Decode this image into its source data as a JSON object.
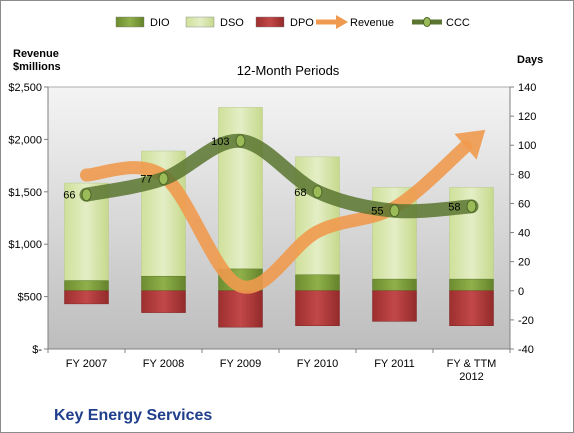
{
  "chart_data": {
    "type": "bar",
    "title": "12-Month Periods",
    "company": "Key Energy Services",
    "ylabel_left": [
      "Revenue",
      "$millions"
    ],
    "ylabel_right": "Days",
    "categories": [
      "FY 2007",
      "FY 2008",
      "FY 2009",
      "FY 2010",
      "FY 2011",
      "FY & TTM 2012"
    ],
    "left_axis": {
      "ylim": [
        0,
        2500
      ],
      "ticks": [
        0,
        500,
        1000,
        1500,
        2000,
        2500
      ],
      "tick_labels": [
        "$-",
        "$500",
        "$1,000",
        "$1,500",
        "$2,000",
        "$2,500"
      ]
    },
    "right_axis": {
      "ylim": [
        -40,
        140
      ],
      "ticks": [
        -40,
        -20,
        0,
        20,
        40,
        60,
        80,
        100,
        120,
        140
      ],
      "tick_labels": [
        "-40",
        "-20",
        "0",
        "20",
        "40",
        "60",
        "80",
        "100",
        "120",
        "140"
      ]
    },
    "legend": [
      {
        "name": "DIO",
        "color": "#7a9a3a",
        "kind": "bar"
      },
      {
        "name": "DSO",
        "color": "#d6e4a8",
        "kind": "bar"
      },
      {
        "name": "DPO",
        "color": "#b03a3a",
        "kind": "bar"
      },
      {
        "name": "Revenue",
        "color": "#ef9a4e",
        "kind": "arrow"
      },
      {
        "name": "CCC",
        "color": "#5b7530",
        "kind": "line-marker"
      }
    ],
    "series": [
      {
        "name": "DIO",
        "axis": "right",
        "values": [
          7,
          10,
          15,
          11,
          8,
          8
        ]
      },
      {
        "name": "DSO",
        "axis": "right",
        "values": [
          67,
          86,
          111,
          81,
          63,
          63
        ]
      },
      {
        "name": "DPO",
        "axis": "right",
        "values": [
          -9,
          -15,
          -25,
          -24,
          -21,
          -24
        ]
      },
      {
        "name": "Revenue",
        "axis": "left",
        "values": [
          1660,
          1650,
          600,
          1120,
          1350,
          1930
        ]
      },
      {
        "name": "CCC",
        "axis": "right",
        "values": [
          66,
          77,
          103,
          68,
          55,
          58
        ]
      }
    ],
    "data_labels": [
      "66",
      "77",
      "103",
      "68",
      "55",
      "58"
    ],
    "legend_position": "top",
    "grid": false,
    "colors": {
      "plot_bg_top": "#f2f2f2",
      "plot_bg_bottom": "#bfbfbf",
      "dio": "#7a9a3a",
      "dso": "#d6e4a8",
      "dpo": "#b03a3a",
      "revenue": "#ef9a4e",
      "ccc": "#5b7530",
      "ccc_marker": "#9bbb59"
    }
  }
}
